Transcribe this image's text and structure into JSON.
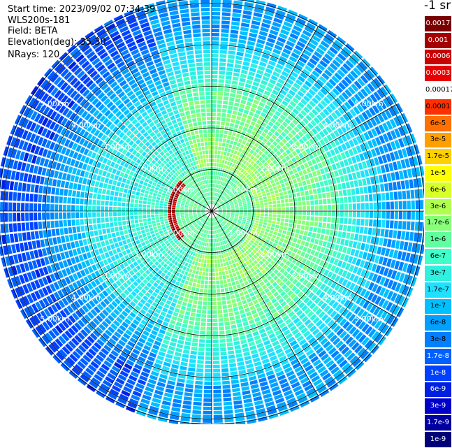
{
  "info": {
    "start_time": "Start time: 2023/09/02 07:34:39",
    "instrument": "WLS200s-181",
    "field": "Field: BETA",
    "elevation": "Elevation(deg): 35.30",
    "nrays": "NRays: 120"
  },
  "units_title": "-1 sr",
  "range_labels": [
    "1.00km",
    "2.00km",
    "3.00km",
    "4.00km",
    "5.00km"
  ],
  "colorbar": [
    {
      "label": "0.0017",
      "color": "#7a0000",
      "text": "#ffffff"
    },
    {
      "label": "0.001",
      "color": "#a50000",
      "text": "#ffffff"
    },
    {
      "label": "0.0006",
      "color": "#c80000",
      "text": "#ffffff"
    },
    {
      "label": "0.0003",
      "color": "#e60000",
      "text": "#ffffff"
    },
    {
      "label": "0.00017",
      "color": "#ffffff",
      "text": "#000000"
    },
    {
      "label": "0.0001",
      "color": "#ff3000",
      "text": "#000000"
    },
    {
      "label": "6e-5",
      "color": "#ff7000",
      "text": "#000000"
    },
    {
      "label": "3e-5",
      "color": "#ffa000",
      "text": "#000000"
    },
    {
      "label": "1.7e-5",
      "color": "#ffd000",
      "text": "#000000"
    },
    {
      "label": "1e-5",
      "color": "#ffff00",
      "text": "#000000"
    },
    {
      "label": "6e-6",
      "color": "#d8ff28",
      "text": "#000000"
    },
    {
      "label": "3e-6",
      "color": "#b0ff50",
      "text": "#000000"
    },
    {
      "label": "1.7e-6",
      "color": "#88ff78",
      "text": "#000000"
    },
    {
      "label": "1e-6",
      "color": "#60ffa0",
      "text": "#000000"
    },
    {
      "label": "6e-7",
      "color": "#40ffc8",
      "text": "#000000"
    },
    {
      "label": "3e-7",
      "color": "#30f0e0",
      "text": "#000000"
    },
    {
      "label": "1.7e-7",
      "color": "#20e0ff",
      "text": "#000000"
    },
    {
      "label": "1e-7",
      "color": "#00c0ff",
      "text": "#000000"
    },
    {
      "label": "6e-8",
      "color": "#00a0ff",
      "text": "#000000"
    },
    {
      "label": "3e-8",
      "color": "#0080ff",
      "text": "#000000"
    },
    {
      "label": "1.7e-8",
      "color": "#0060ff",
      "text": "#ffffff"
    },
    {
      "label": "1e-8",
      "color": "#0040ff",
      "text": "#ffffff"
    },
    {
      "label": "6e-9",
      "color": "#0020e0",
      "text": "#ffffff"
    },
    {
      "label": "3e-9",
      "color": "#0000c8",
      "text": "#ffffff"
    },
    {
      "label": "1.7e-9",
      "color": "#0000a0",
      "text": "#ffffff"
    },
    {
      "label": "1e-9",
      "color": "#000078",
      "text": "#ffffff"
    }
  ]
}
